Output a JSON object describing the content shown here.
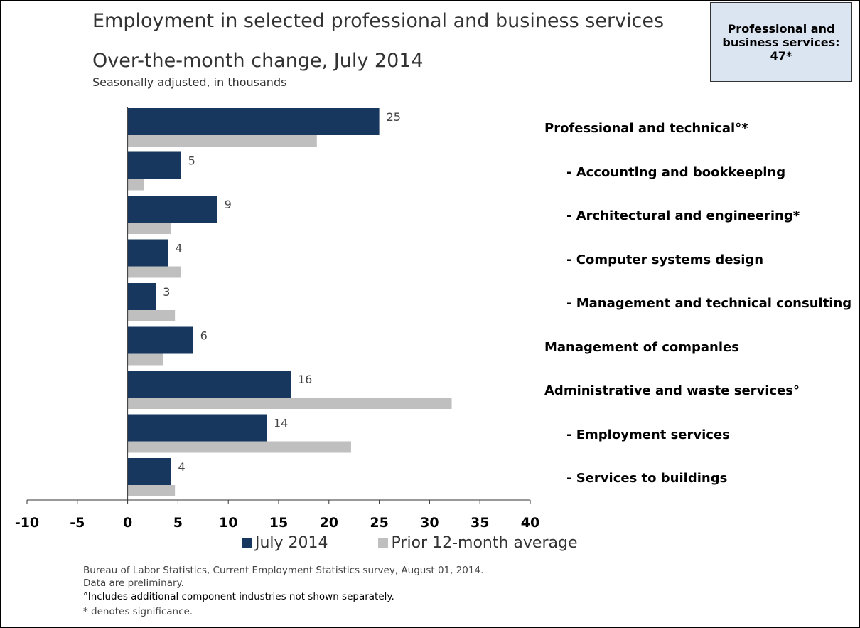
{
  "callout": {
    "text": "Professional and business services: 47*"
  },
  "footnotes": {
    "source": "Bureau of Labor Statistics, Current Employment Statistics survey, August 01, 2014.",
    "preliminary": "Data are preliminary.",
    "components": "°Includes additional component industries not shown separately.",
    "significance": "* denotes significance."
  },
  "colors": {
    "july": "#17375e",
    "prior": "#bfbfbf"
  },
  "chart_data": {
    "type": "bar",
    "orientation": "horizontal",
    "title": "Employment in selected professional and business services",
    "subtitle": "Over-the-month change, July 2014",
    "subsubtitle": "Seasonally adjusted, in thousands",
    "categories": [
      "Professional and technical°*",
      "- Accounting and bookkeeping",
      "- Architectural and engineering*",
      "- Computer systems design",
      "- Management and technical consulting",
      "Management of companies",
      "Administrative and waste services°",
      "- Employment services",
      "- Services to buildings"
    ],
    "indent": [
      false,
      true,
      true,
      true,
      true,
      false,
      false,
      true,
      true
    ],
    "series": [
      {
        "name": "July 2014",
        "values": [
          25,
          5.3,
          8.9,
          4,
          2.8,
          6.5,
          16.2,
          13.8,
          4.3
        ],
        "labels": [
          "25",
          "5",
          "9",
          "4",
          "3",
          "6",
          "16",
          "14",
          "4"
        ]
      },
      {
        "name": "Prior 12-month average",
        "values": [
          18.8,
          1.6,
          4.3,
          5.3,
          4.7,
          3.5,
          32.2,
          22.2,
          4.7
        ]
      }
    ],
    "xlim": [
      -10,
      40
    ],
    "xticks": [
      "-10",
      "-5",
      "0",
      "5",
      "10",
      "15",
      "20",
      "25",
      "30",
      "35",
      "40"
    ],
    "grid": false,
    "legend": "bottom"
  }
}
